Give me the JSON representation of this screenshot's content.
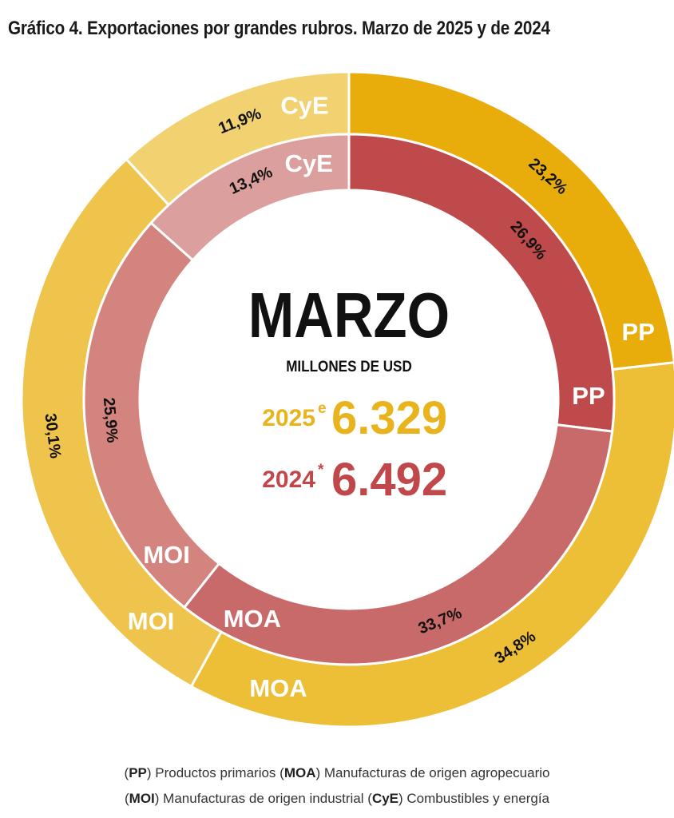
{
  "chart_data": {
    "type": "pie",
    "title": "Gráfico 4. Exportaciones por grandes rubros. Marzo de 2025 y de 2024",
    "center": {
      "month": "MARZO",
      "unit": "MILLONES DE USD",
      "rows": [
        {
          "year": "2025",
          "mark": "e",
          "value": "6.329",
          "color": "#e8b31c"
        },
        {
          "year": "2024",
          "mark": "*",
          "value": "6.492",
          "color": "#c0474a"
        }
      ]
    },
    "series": [
      {
        "name": "2025",
        "ring": "outer",
        "slices": [
          {
            "label": "PP",
            "value": 23.2,
            "value_label": "23,2%",
            "color": "#e8ac0b"
          },
          {
            "label": "MOA",
            "value": 34.8,
            "value_label": "34,8%",
            "color": "#ecbf36"
          },
          {
            "label": "MOI",
            "value": 30.1,
            "value_label": "30,1%",
            "color": "#eec44c"
          },
          {
            "label": "CyE",
            "value": 11.9,
            "value_label": "11,9%",
            "color": "#f1d170"
          }
        ]
      },
      {
        "name": "2024",
        "ring": "inner",
        "slices": [
          {
            "label": "PP",
            "value": 26.9,
            "value_label": "26,9%",
            "color": "#bf4a4b"
          },
          {
            "label": "MOA",
            "value": 33.7,
            "value_label": "33,7%",
            "color": "#c86a6a"
          },
          {
            "label": "MOI",
            "value": 25.9,
            "value_label": "25,9%",
            "color": "#d3847f"
          },
          {
            "label": "CyE",
            "value": 13.4,
            "value_label": "13,4%",
            "color": "#dba09d"
          }
        ]
      }
    ],
    "legend": [
      {
        "key": "PP",
        "text": "Productos primarios"
      },
      {
        "key": "MOA",
        "text": "Manufacturas de origen agropecuario"
      },
      {
        "key": "MOI",
        "text": "Manufacturas de origen industrial"
      },
      {
        "key": "CyE",
        "text": "Combustibles y energía"
      }
    ]
  }
}
